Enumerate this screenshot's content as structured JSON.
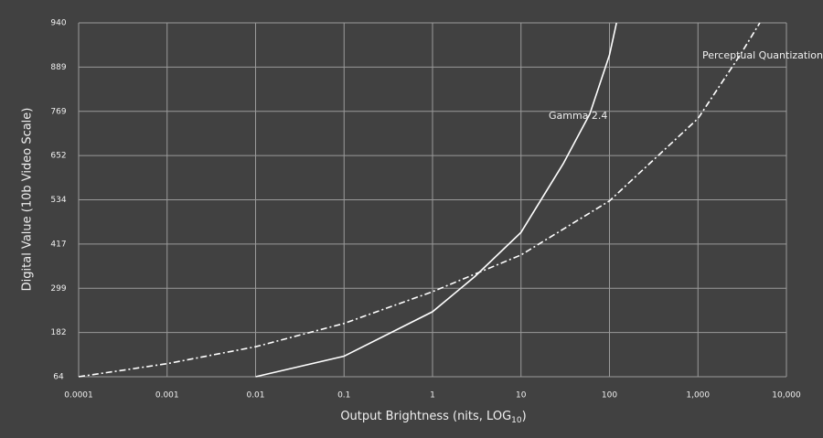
{
  "chart_data": {
    "type": "line",
    "x_label": [
      "Output Brightness (nits, LOG",
      "10",
      ")"
    ],
    "y_label": "Digital Value (10b Video Scale)",
    "log_x": true,
    "grid": true,
    "xlim": [
      0.0001,
      10000
    ],
    "xticks": [
      0.0001,
      0.001,
      0.01,
      0.1,
      1,
      10,
      100,
      {
        "value": 1000,
        "label": "1,000"
      },
      {
        "value": 10000,
        "label": "10,000"
      }
    ],
    "ylim": [
      64,
      940
    ],
    "yticks": [
      64,
      182,
      299,
      417,
      534,
      652,
      769,
      889,
      940
    ],
    "series": [
      {
        "name": "Gamma 2.4",
        "color": "#ffffff",
        "style": "solid",
        "x": [
          0.01,
          0.1,
          1,
          3,
          10,
          30,
          60,
          100,
          120
        ],
        "values": [
          64,
          119,
          237,
          330,
          448,
          630,
          762,
          903,
          940
        ]
      },
      {
        "name": "Perceptual Quantization",
        "color": "#ffffff",
        "style": "dashdot",
        "x": [
          0.0001,
          0.001,
          0.01,
          0.1,
          1,
          10,
          100,
          1000,
          3000,
          5000
        ],
        "values": [
          64,
          99,
          144,
          206,
          290,
          388,
          531,
          750,
          903,
          940
        ]
      }
    ]
  }
}
